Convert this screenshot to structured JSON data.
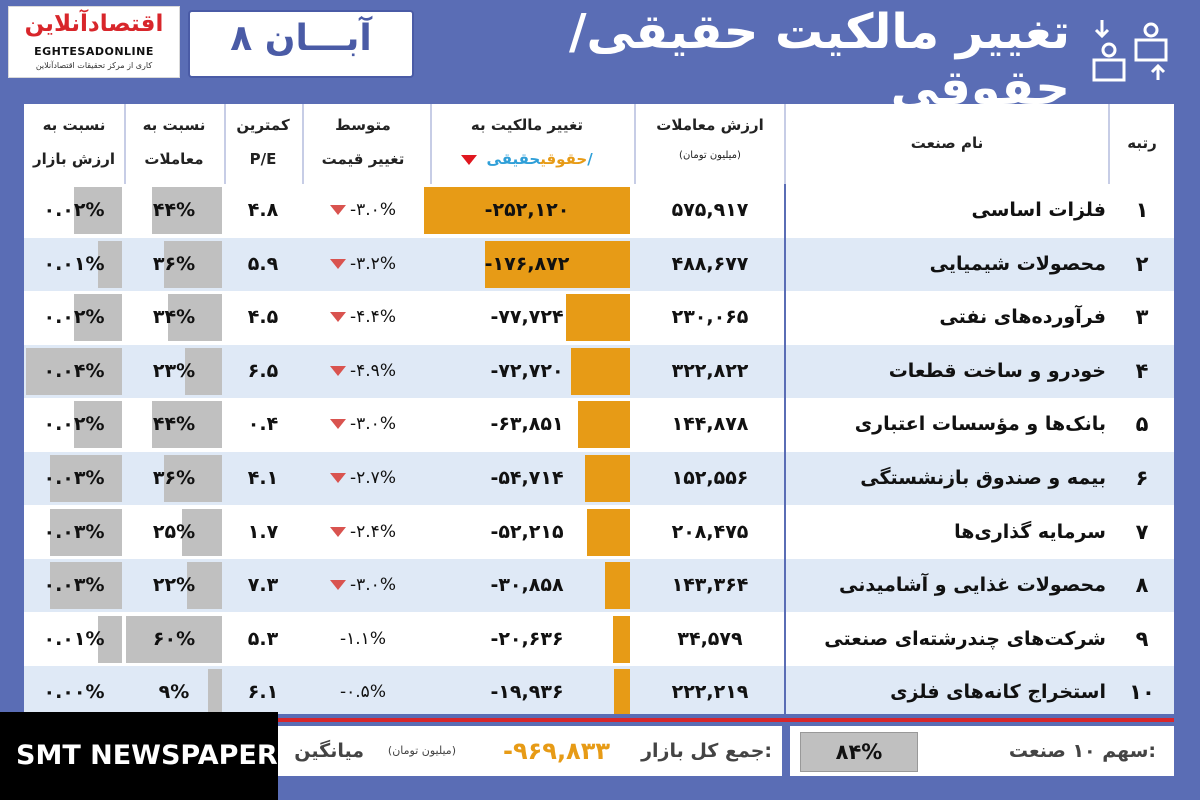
{
  "header": {
    "logo_text": "اقتصادآنلاین",
    "logo_latin": "EGHTESADONLINE",
    "logo_tagline": "کاری از مرکز تحقیقات اقتصادآنلاین",
    "date": "۸ آبـــان",
    "title": "تغییر مالکیت حقیقی/حقوقی",
    "title_icon": "people-transfer-icon"
  },
  "columns": {
    "rank": "رتبه",
    "name": "نام صنعت",
    "value_l1": "ارزش معاملات",
    "value_l2": "(میلیون تومان)",
    "change_l1": "تغییر مالکیت به",
    "change_l2_a": "حقیقی/",
    "change_l2_b": "حقوقی",
    "price_l1": "متوسط",
    "price_l2": "تغییر قیمت",
    "pe_l1": "کمترین",
    "pe_l2": "P/E",
    "trade_l1": "نسبت به",
    "trade_l2": "معاملات",
    "market_l1": "نسبت به",
    "market_l2": "ارزش بازار"
  },
  "colors": {
    "accent": "#5a6db5",
    "change_bar": "#e79b16",
    "ratio_bar": "#c0c0c0",
    "down": "#d9534f",
    "row_alt": "#dfe9f6",
    "negative_total": "#e79b16"
  },
  "chart_data": {
    "type": "table",
    "rows": [
      {
        "rank": "۱",
        "name": "فلزات اساسی",
        "value": "۵۷۵,۹۱۷",
        "change": "-۲۵۲,۱۲۰",
        "change_num": -252120,
        "price": "-۳.۰%",
        "price_down": true,
        "pe": "۴.۸",
        "trade": "۴۴%",
        "trade_num": 44,
        "market": "۰.۰۲%",
        "market_num": 0.02
      },
      {
        "rank": "۲",
        "name": "محصولات شیمیایی",
        "value": "۴۸۸,۶۷۷",
        "change": "-۱۷۶,۸۷۲",
        "change_num": -176872,
        "price": "-۳.۲%",
        "price_down": true,
        "pe": "۵.۹",
        "trade": "۳۶%",
        "trade_num": 36,
        "market": "۰.۰۱%",
        "market_num": 0.01
      },
      {
        "rank": "۳",
        "name": "فرآورده‌های نفتی",
        "value": "۲۳۰,۰۶۵",
        "change": "-۷۷,۷۲۴",
        "change_num": -77724,
        "price": "-۴.۴%",
        "price_down": true,
        "pe": "۴.۵",
        "trade": "۳۴%",
        "trade_num": 34,
        "market": "۰.۰۲%",
        "market_num": 0.02
      },
      {
        "rank": "۴",
        "name": "خودرو و ساخت قطعات",
        "value": "۳۲۲,۸۲۲",
        "change": "-۷۲,۷۲۰",
        "change_num": -72720,
        "price": "-۴.۹%",
        "price_down": true,
        "pe": "۶.۵",
        "trade": "۲۳%",
        "trade_num": 23,
        "market": "۰.۰۴%",
        "market_num": 0.04
      },
      {
        "rank": "۵",
        "name": "بانک‌ها و مؤسسات اعتباری",
        "value": "۱۴۴,۸۷۸",
        "change": "-۶۳,۸۵۱",
        "change_num": -63851,
        "price": "-۳.۰%",
        "price_down": true,
        "pe": "۰.۴",
        "trade": "۴۴%",
        "trade_num": 44,
        "market": "۰.۰۲%",
        "market_num": 0.02
      },
      {
        "rank": "۶",
        "name": "بیمه و صندوق بازنشستگی",
        "value": "۱۵۲,۵۵۶",
        "change": "-۵۴,۷۱۴",
        "change_num": -54714,
        "price": "-۲.۷%",
        "price_down": true,
        "pe": "۴.۱",
        "trade": "۳۶%",
        "trade_num": 36,
        "market": "۰.۰۳%",
        "market_num": 0.03
      },
      {
        "rank": "۷",
        "name": "سرمایه گذاری‌ها",
        "value": "۲۰۸,۴۷۵",
        "change": "-۵۲,۲۱۵",
        "change_num": -52215,
        "price": "-۲.۴%",
        "price_down": true,
        "pe": "۱.۷",
        "trade": "۲۵%",
        "trade_num": 25,
        "market": "۰.۰۳%",
        "market_num": 0.03
      },
      {
        "rank": "۸",
        "name": "محصولات غذایی و آشامیدنی",
        "value": "۱۴۳,۳۶۴",
        "change": "-۳۰,۸۵۸",
        "change_num": -30858,
        "price": "-۳.۰%",
        "price_down": true,
        "pe": "۷.۳",
        "trade": "۲۲%",
        "trade_num": 22,
        "market": "۰.۰۳%",
        "market_num": 0.03
      },
      {
        "rank": "۹",
        "name": "شرکت‌های چندرشته‌ای صنعتی",
        "value": "۳۴,۵۷۹",
        "change": "-۲۰,۶۳۶",
        "change_num": -20636,
        "price": "-۱.۱%",
        "price_down": false,
        "pe": "۵.۳",
        "trade": "۶۰%",
        "trade_num": 60,
        "market": "۰.۰۱%",
        "market_num": 0.01
      },
      {
        "rank": "۱۰",
        "name": "استخراج کانه‌های فلزی",
        "value": "۲۲۲,۲۱۹",
        "change": "-۱۹,۹۳۶",
        "change_num": -19936,
        "price": "-۰.۵%",
        "price_down": false,
        "pe": "۶.۱",
        "trade": "۹%",
        "trade_num": 9,
        "market": "۰.۰۰%",
        "market_num": 0.0
      }
    ]
  },
  "footer": {
    "share_label": "سهم ۱۰ صنعت:",
    "share_value": "۸۴%",
    "total_label": "جمع کل بازار:",
    "total_value": "-۹۶۹,۸۳۳",
    "total_unit": "(میلیون تومان)",
    "avg_label": "میانگین",
    "watermark": "SMT NEWSPAPER"
  }
}
